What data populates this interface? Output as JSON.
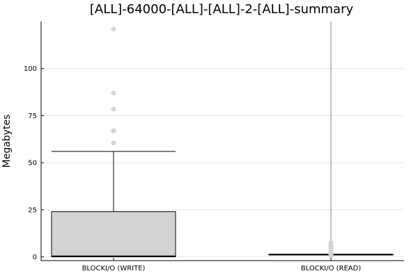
{
  "chart_data": {
    "type": "box",
    "title": "[ALL]-64000-[ALL]-[ALL]-2-[ALL]-summary",
    "ylabel": "Megabytes",
    "xlabel": "",
    "ylim": [
      -2,
      125
    ],
    "yticks": [
      0,
      25,
      50,
      75,
      100
    ],
    "grid": true,
    "legend": "none",
    "colors": {
      "box_fill": "#d3d3d3",
      "box_stroke": "#000000",
      "outlier": "#d3d3d3",
      "grid": "#e6e6e6",
      "read_whisker": "#808080"
    },
    "categories": [
      "BLOCKI/O (WRITE)",
      "BLOCKI/O (READ)"
    ],
    "series": [
      {
        "category": "BLOCKI/O (WRITE)",
        "min": 0,
        "q1": 0,
        "median": 0.3,
        "q3": 24,
        "max": 56,
        "outliers": [
          60.5,
          67,
          78.5,
          87,
          121
        ]
      },
      {
        "category": "BLOCKI/O (READ)",
        "min": 0,
        "q1": 1,
        "median": 1.2,
        "q3": 1.4,
        "max": 125,
        "outliers": [
          0.5,
          1.5,
          2.5,
          3.5,
          4.5,
          5.5,
          6.5,
          7.5
        ]
      }
    ]
  }
}
